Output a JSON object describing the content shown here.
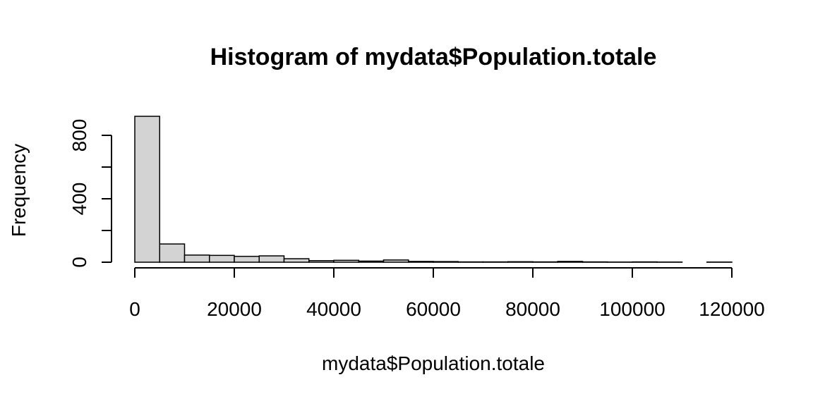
{
  "chart_data": {
    "type": "bar",
    "title": "Histogram of mydata$Population.totale",
    "xlabel": "mydata$Population.totale",
    "ylabel": "Frequency",
    "bin_width": 5000,
    "bins": [
      {
        "start": 0,
        "end": 5000,
        "count": 920
      },
      {
        "start": 5000,
        "end": 10000,
        "count": 115
      },
      {
        "start": 10000,
        "end": 15000,
        "count": 45
      },
      {
        "start": 15000,
        "end": 20000,
        "count": 43
      },
      {
        "start": 20000,
        "end": 25000,
        "count": 37
      },
      {
        "start": 25000,
        "end": 30000,
        "count": 40
      },
      {
        "start": 30000,
        "end": 35000,
        "count": 22
      },
      {
        "start": 35000,
        "end": 40000,
        "count": 10
      },
      {
        "start": 40000,
        "end": 45000,
        "count": 12
      },
      {
        "start": 45000,
        "end": 50000,
        "count": 7
      },
      {
        "start": 50000,
        "end": 55000,
        "count": 14
      },
      {
        "start": 55000,
        "end": 60000,
        "count": 5
      },
      {
        "start": 60000,
        "end": 65000,
        "count": 4
      },
      {
        "start": 65000,
        "end": 70000,
        "count": 2
      },
      {
        "start": 70000,
        "end": 75000,
        "count": 2
      },
      {
        "start": 75000,
        "end": 80000,
        "count": 3
      },
      {
        "start": 80000,
        "end": 85000,
        "count": 2
      },
      {
        "start": 85000,
        "end": 90000,
        "count": 5
      },
      {
        "start": 90000,
        "end": 95000,
        "count": 2
      },
      {
        "start": 95000,
        "end": 100000,
        "count": 1
      },
      {
        "start": 100000,
        "end": 105000,
        "count": 2
      },
      {
        "start": 105000,
        "end": 110000,
        "count": 1
      },
      {
        "start": 110000,
        "end": 115000,
        "count": 0
      },
      {
        "start": 115000,
        "end": 120000,
        "count": 1
      }
    ],
    "xlim": [
      0,
      120000
    ],
    "ylim": [
      0,
      920
    ],
    "x_ticks": [
      0,
      20000,
      40000,
      60000,
      80000,
      100000,
      120000
    ],
    "x_tick_labels": [
      "0",
      "20000",
      "40000",
      "60000",
      "80000",
      "100000",
      "120000"
    ],
    "y_ticks": [
      0,
      200,
      400,
      600,
      800
    ],
    "y_tick_labels": [
      "0",
      "",
      "400",
      "",
      "800"
    ],
    "bar_fill": "#d3d3d3",
    "grid": false
  }
}
